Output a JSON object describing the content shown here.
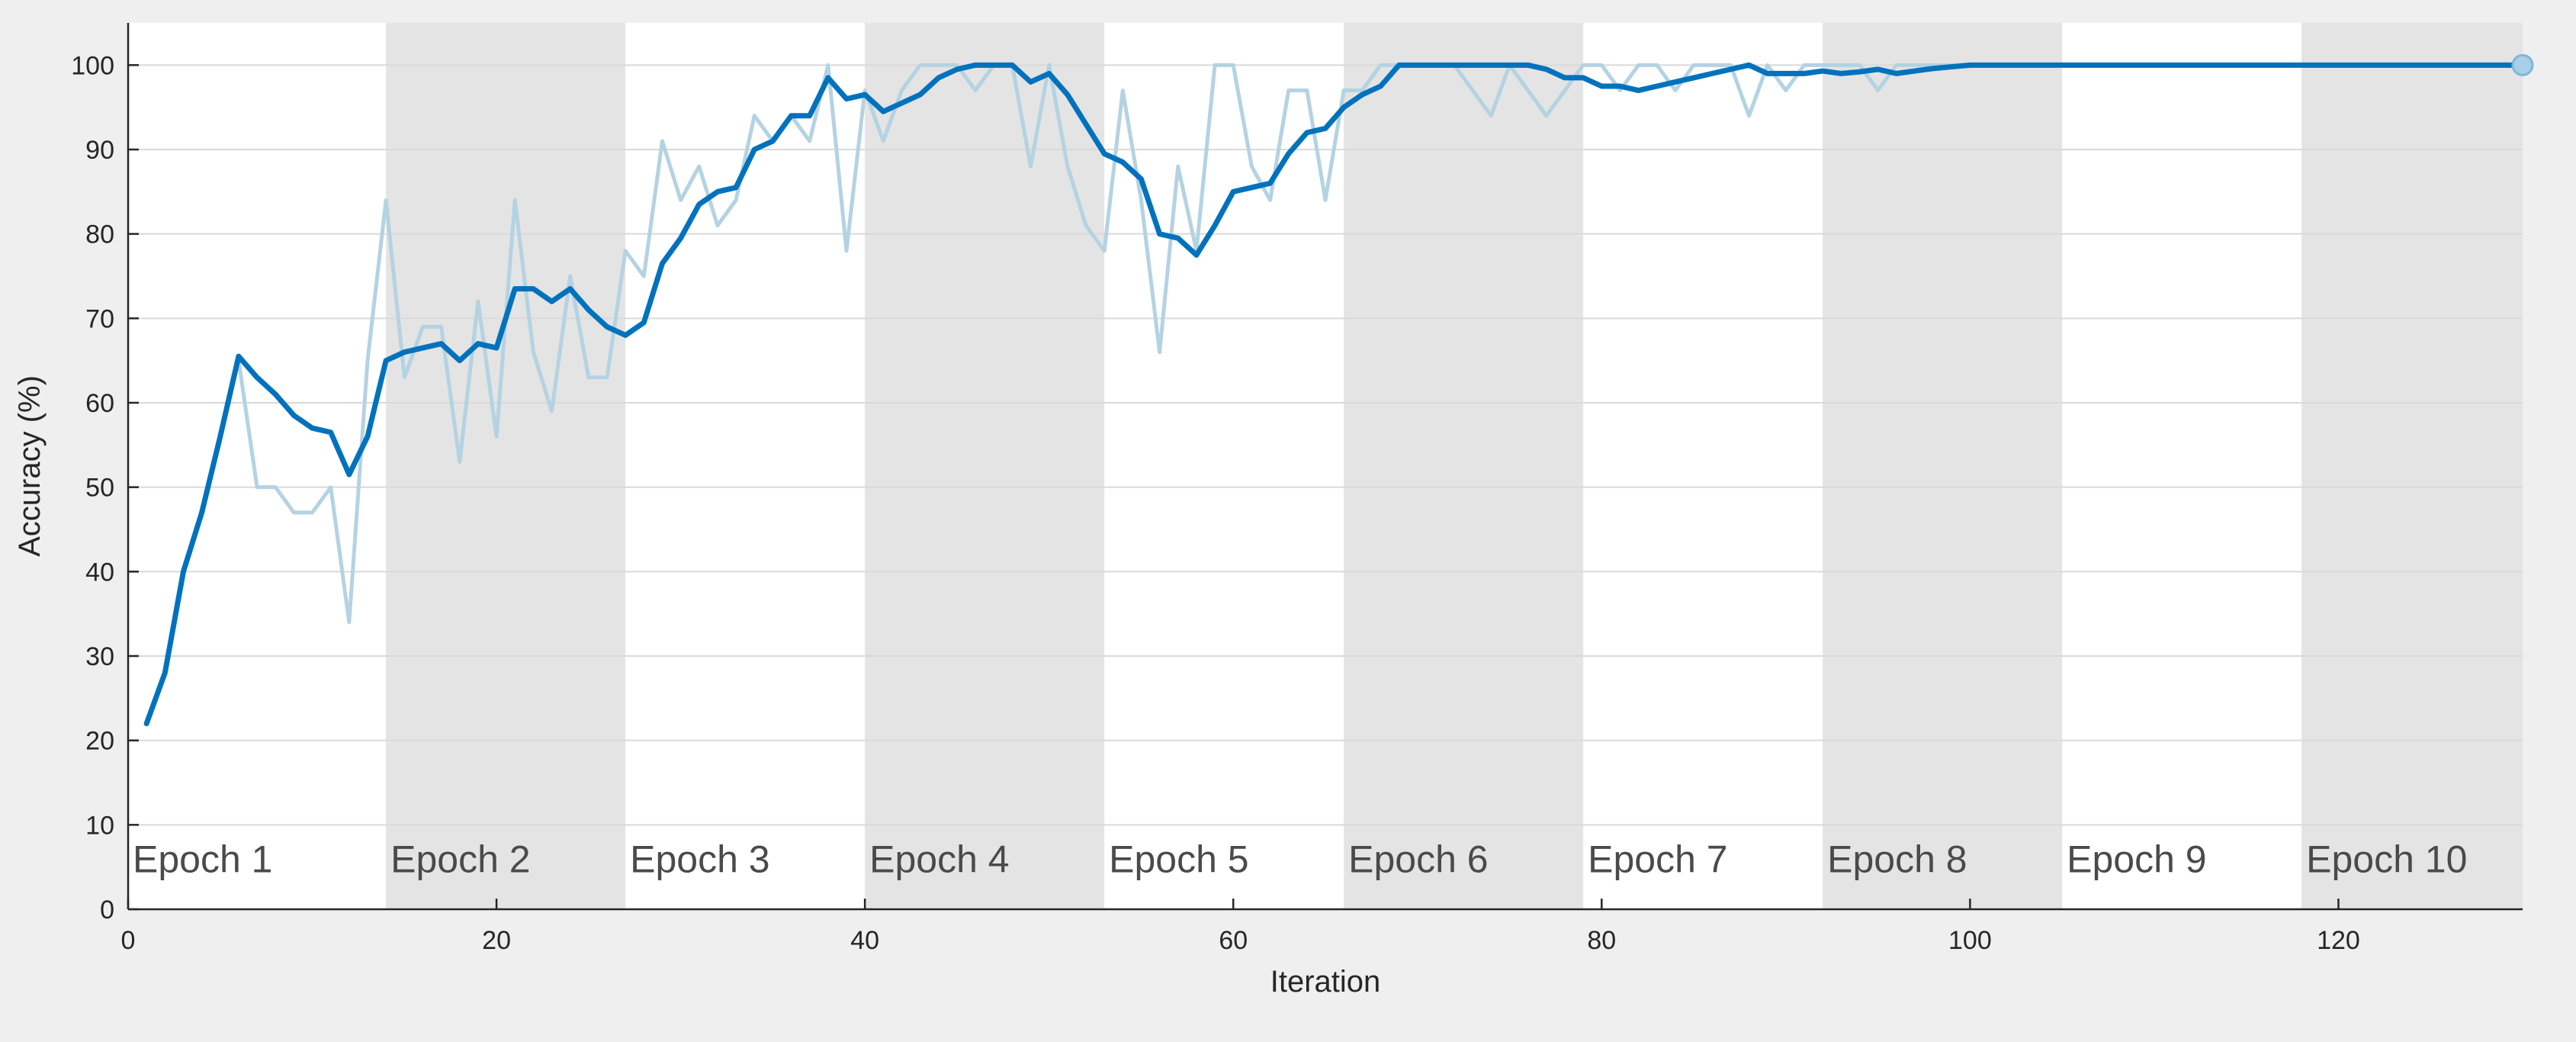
{
  "chart_data": {
    "type": "line",
    "title": "",
    "xlabel": "Iteration",
    "ylabel": "Accuracy (%)",
    "xlim": [
      0,
      130
    ],
    "ylim": [
      0,
      105
    ],
    "x_ticks": [
      0,
      20,
      40,
      60,
      80,
      100,
      120
    ],
    "y_ticks": [
      0,
      10,
      20,
      30,
      40,
      50,
      60,
      70,
      80,
      90,
      100
    ],
    "grid": true,
    "legend": "none",
    "epochs": [
      {
        "label": "Epoch 1",
        "start": 0,
        "end": 14,
        "shaded": false
      },
      {
        "label": "Epoch 2",
        "start": 14,
        "end": 27,
        "shaded": true
      },
      {
        "label": "Epoch 3",
        "start": 27,
        "end": 40,
        "shaded": false
      },
      {
        "label": "Epoch 4",
        "start": 40,
        "end": 53,
        "shaded": true
      },
      {
        "label": "Epoch 5",
        "start": 53,
        "end": 66,
        "shaded": false
      },
      {
        "label": "Epoch 6",
        "start": 66,
        "end": 79,
        "shaded": true
      },
      {
        "label": "Epoch 7",
        "start": 79,
        "end": 92,
        "shaded": false
      },
      {
        "label": "Epoch 8",
        "start": 92,
        "end": 105,
        "shaded": true
      },
      {
        "label": "Epoch 9",
        "start": 105,
        "end": 118,
        "shaded": false
      },
      {
        "label": "Epoch 10",
        "start": 118,
        "end": 130,
        "shaded": true
      }
    ],
    "series": [
      {
        "role": "raw",
        "color": "#b4d3e2",
        "points": [
          [
            1,
            22
          ],
          [
            2,
            28
          ],
          [
            3,
            40
          ],
          [
            4,
            47
          ],
          [
            5,
            56
          ],
          [
            6,
            65
          ],
          [
            7,
            50
          ],
          [
            8,
            50
          ],
          [
            9,
            47
          ],
          [
            10,
            47
          ],
          [
            11,
            50
          ],
          [
            12,
            34
          ],
          [
            13,
            65
          ],
          [
            14,
            84
          ],
          [
            15,
            63
          ],
          [
            16,
            69
          ],
          [
            17,
            69
          ],
          [
            18,
            53
          ],
          [
            19,
            72
          ],
          [
            20,
            56
          ],
          [
            21,
            84
          ],
          [
            22,
            66
          ],
          [
            23,
            59
          ],
          [
            24,
            75
          ],
          [
            25,
            63
          ],
          [
            26,
            63
          ],
          [
            27,
            78
          ],
          [
            28,
            75
          ],
          [
            29,
            91
          ],
          [
            30,
            84
          ],
          [
            31,
            88
          ],
          [
            32,
            81
          ],
          [
            33,
            84
          ],
          [
            34,
            94
          ],
          [
            35,
            91
          ],
          [
            36,
            94
          ],
          [
            37,
            91
          ],
          [
            38,
            100
          ],
          [
            39,
            78
          ],
          [
            40,
            97
          ],
          [
            41,
            91
          ],
          [
            42,
            97
          ],
          [
            43,
            100
          ],
          [
            44,
            100
          ],
          [
            45,
            100
          ],
          [
            46,
            97
          ],
          [
            47,
            100
          ],
          [
            48,
            100
          ],
          [
            49,
            88
          ],
          [
            50,
            100
          ],
          [
            51,
            88
          ],
          [
            52,
            81
          ],
          [
            53,
            78
          ],
          [
            54,
            97
          ],
          [
            55,
            84
          ],
          [
            56,
            66
          ],
          [
            57,
            88
          ],
          [
            58,
            78
          ],
          [
            59,
            100
          ],
          [
            60,
            100
          ],
          [
            61,
            88
          ],
          [
            62,
            84
          ],
          [
            63,
            97
          ],
          [
            64,
            97
          ],
          [
            65,
            84
          ],
          [
            66,
            97
          ],
          [
            67,
            97
          ],
          [
            68,
            100
          ],
          [
            69,
            100
          ],
          [
            70,
            100
          ],
          [
            71,
            100
          ],
          [
            72,
            100
          ],
          [
            73,
            97
          ],
          [
            74,
            94
          ],
          [
            75,
            100
          ],
          [
            76,
            97
          ],
          [
            77,
            94
          ],
          [
            78,
            97
          ],
          [
            79,
            100
          ],
          [
            80,
            100
          ],
          [
            81,
            97
          ],
          [
            82,
            100
          ],
          [
            83,
            100
          ],
          [
            84,
            97
          ],
          [
            85,
            100
          ],
          [
            86,
            100
          ],
          [
            87,
            100
          ],
          [
            88,
            94
          ],
          [
            89,
            100
          ],
          [
            90,
            97
          ],
          [
            91,
            100
          ],
          [
            92,
            100
          ],
          [
            93,
            100
          ],
          [
            94,
            100
          ],
          [
            95,
            97
          ],
          [
            96,
            100
          ],
          [
            97,
            100
          ],
          [
            98,
            100
          ],
          [
            99,
            100
          ],
          [
            100,
            100
          ],
          [
            101,
            100
          ],
          [
            102,
            100
          ],
          [
            103,
            100
          ],
          [
            104,
            100
          ],
          [
            105,
            100
          ],
          [
            110,
            100
          ],
          [
            115,
            100
          ],
          [
            120,
            100
          ],
          [
            125,
            100
          ],
          [
            130,
            100
          ]
        ]
      },
      {
        "role": "smoothed",
        "color": "#0072bd",
        "points": [
          [
            1,
            22
          ],
          [
            2,
            28
          ],
          [
            3,
            40
          ],
          [
            4,
            47
          ],
          [
            5,
            56
          ],
          [
            6,
            65.5
          ],
          [
            7,
            63
          ],
          [
            8,
            61
          ],
          [
            9,
            58.5
          ],
          [
            10,
            57
          ],
          [
            11,
            56.5
          ],
          [
            12,
            51.5
          ],
          [
            13,
            56
          ],
          [
            14,
            65
          ],
          [
            15,
            66
          ],
          [
            16,
            66.5
          ],
          [
            17,
            67
          ],
          [
            18,
            65
          ],
          [
            19,
            67
          ],
          [
            20,
            66.5
          ],
          [
            21,
            73.5
          ],
          [
            22,
            73.5
          ],
          [
            23,
            72
          ],
          [
            24,
            73.5
          ],
          [
            25,
            71
          ],
          [
            26,
            69
          ],
          [
            27,
            68
          ],
          [
            28,
            69.5
          ],
          [
            29,
            76.5
          ],
          [
            30,
            79.5
          ],
          [
            31,
            83.5
          ],
          [
            32,
            85
          ],
          [
            33,
            85.5
          ],
          [
            34,
            90
          ],
          [
            35,
            91
          ],
          [
            36,
            94
          ],
          [
            37,
            94
          ],
          [
            38,
            98.5
          ],
          [
            39,
            96
          ],
          [
            40,
            96.5
          ],
          [
            41,
            94.5
          ],
          [
            42,
            95.5
          ],
          [
            43,
            96.5
          ],
          [
            44,
            98.5
          ],
          [
            45,
            99.5
          ],
          [
            46,
            100
          ],
          [
            47,
            100
          ],
          [
            48,
            100
          ],
          [
            49,
            98
          ],
          [
            50,
            99
          ],
          [
            51,
            96.5
          ],
          [
            52,
            93
          ],
          [
            53,
            89.5
          ],
          [
            54,
            88.5
          ],
          [
            55,
            86.5
          ],
          [
            56,
            80
          ],
          [
            57,
            79.5
          ],
          [
            58,
            77.5
          ],
          [
            59,
            81
          ],
          [
            60,
            85
          ],
          [
            61,
            85.5
          ],
          [
            62,
            86
          ],
          [
            63,
            89.5
          ],
          [
            64,
            92
          ],
          [
            65,
            92.5
          ],
          [
            66,
            95
          ],
          [
            67,
            96.5
          ],
          [
            68,
            97.5
          ],
          [
            69,
            100
          ],
          [
            70,
            100
          ],
          [
            71,
            100
          ],
          [
            72,
            100
          ],
          [
            73,
            100
          ],
          [
            74,
            100
          ],
          [
            75,
            100
          ],
          [
            76,
            100
          ],
          [
            77,
            99.5
          ],
          [
            78,
            98.5
          ],
          [
            79,
            98.5
          ],
          [
            80,
            97.5
          ],
          [
            81,
            97.5
          ],
          [
            82,
            97
          ],
          [
            83,
            97.5
          ],
          [
            84,
            98
          ],
          [
            85,
            98.5
          ],
          [
            86,
            99
          ],
          [
            87,
            99.5
          ],
          [
            88,
            100
          ],
          [
            89,
            99
          ],
          [
            90,
            99
          ],
          [
            91,
            99
          ],
          [
            92,
            99.3
          ],
          [
            93,
            99
          ],
          [
            94,
            99.2
          ],
          [
            95,
            99.5
          ],
          [
            96,
            99
          ],
          [
            97,
            99.3
          ],
          [
            98,
            99.6
          ],
          [
            99,
            99.8
          ],
          [
            100,
            100
          ],
          [
            101,
            100
          ],
          [
            102,
            100
          ],
          [
            105,
            100
          ],
          [
            110,
            100
          ],
          [
            115,
            100
          ],
          [
            120,
            100
          ],
          [
            125,
            100
          ],
          [
            130,
            100
          ]
        ]
      }
    ]
  }
}
